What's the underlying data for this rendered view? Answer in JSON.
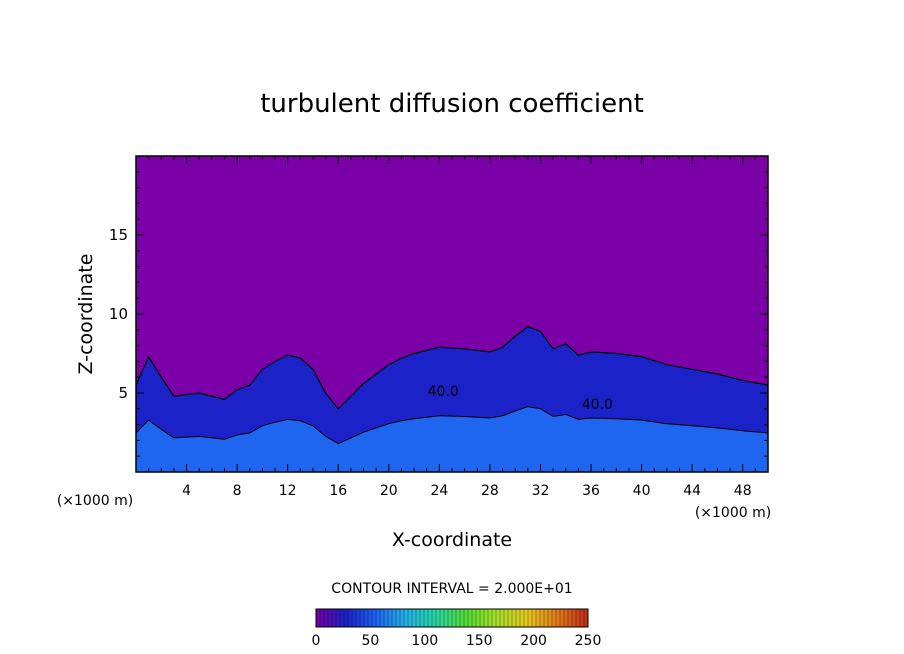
{
  "chart_data": {
    "type": "heatmap",
    "title": "turbulent diffusion coefficient",
    "xlabel": "X-coordinate",
    "ylabel": "Z-coordinate",
    "x_unit_left": "(×1000 m)",
    "x_unit_right": "(×1000 m)",
    "xlim": [
      0,
      50
    ],
    "ylim": [
      0,
      20
    ],
    "x_ticks": [
      4,
      8,
      12,
      16,
      20,
      24,
      28,
      32,
      36,
      40,
      44,
      48
    ],
    "x_tick_labels": [
      "4",
      "8",
      "12",
      "16",
      "20",
      "24",
      "28",
      "32",
      "36",
      "40",
      "44",
      "48"
    ],
    "y_ticks": [
      5,
      10,
      15
    ],
    "y_tick_labels": [
      "5",
      "10",
      "15"
    ],
    "contour_labels": [
      {
        "text": "40.0",
        "x": 24.3,
        "y": 4.8
      },
      {
        "text": "40.0",
        "x": 36.5,
        "y": 4.0
      }
    ],
    "contour_interval_text": "CONTOUR INTERVAL = 2.000E+01",
    "colorbar": {
      "min": 0,
      "max": 250,
      "ticks": [
        0,
        50,
        100,
        150,
        200,
        250
      ],
      "tick_labels": [
        "0",
        "50",
        "100",
        "150",
        "200",
        "250"
      ],
      "colors": [
        "#7400a8",
        "#1a22c8",
        "#1e66f0",
        "#22b4e6",
        "#29d6a0",
        "#55dd33",
        "#a8e02a",
        "#e6c81e",
        "#e07a18",
        "#c02a18"
      ]
    },
    "background_color": "#7b00a7",
    "turbulent_layer_top_profile": {
      "x": [
        0,
        1,
        2,
        3,
        5,
        7,
        8,
        9,
        10,
        11,
        12,
        13,
        14,
        15,
        16,
        17,
        18,
        19,
        20,
        21,
        22,
        24,
        26,
        28,
        29,
        30,
        31,
        32,
        33,
        34,
        35,
        36,
        38,
        40,
        42,
        44,
        46,
        48,
        50
      ],
      "z": [
        5.5,
        7.3,
        6.0,
        4.8,
        5.0,
        4.6,
        5.2,
        5.5,
        6.5,
        7.0,
        7.4,
        7.2,
        6.5,
        5.0,
        4.0,
        4.8,
        5.6,
        6.2,
        6.8,
        7.2,
        7.5,
        7.9,
        7.8,
        7.6,
        7.9,
        8.6,
        9.2,
        8.9,
        7.8,
        8.1,
        7.4,
        7.6,
        7.5,
        7.3,
        6.8,
        6.5,
        6.2,
        5.8,
        5.5
      ]
    }
  }
}
